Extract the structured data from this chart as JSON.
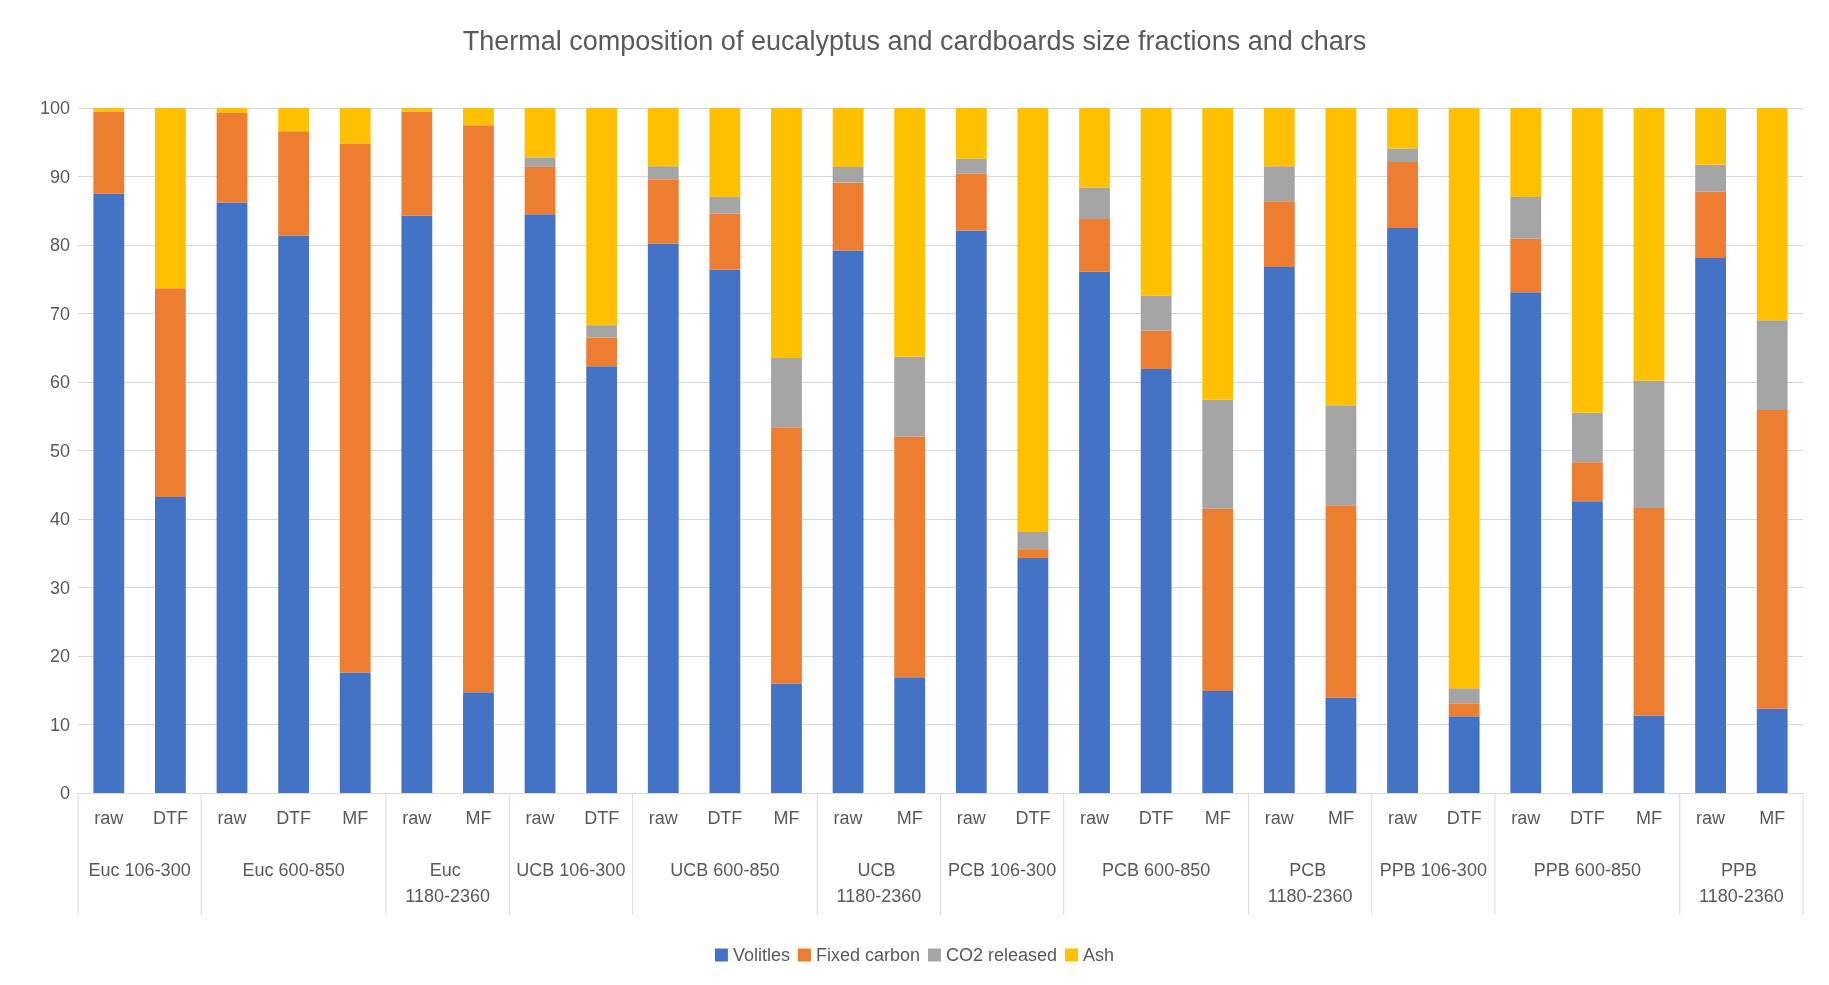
{
  "chart_data": {
    "type": "bar",
    "title": "Thermal composition of eucalyptus and cardboards size fractions and chars",
    "categories": [
      "raw",
      "DTF",
      "raw",
      "DTF",
      "MF",
      "raw",
      "MF",
      "raw",
      "DTF",
      "raw",
      "DTF",
      "MF",
      "raw",
      "MF",
      "raw",
      "DTF",
      "raw",
      "DTF",
      "MF",
      "raw",
      "MF",
      "raw",
      "DTF",
      "raw",
      "DTF",
      "MF",
      "raw",
      "MF"
    ],
    "annotations": [
      "Euc 106-300",
      "Euc 600-850",
      "Euc 1180-2360",
      "UCB 106-300",
      "UCB 600-850",
      "UCB 1180-2360",
      "PCB 106-300",
      "PCB 600-850",
      "PCB 1180-2360",
      "PPB 106-300",
      "PPB 600-850",
      "PPB 1180-2360"
    ],
    "stacked": true,
    "series": [
      {
        "name": "Volitles",
        "color": "#4472c4",
        "values": [
          87.5,
          43.2,
          86.2,
          81.4,
          17.6,
          84.3,
          14.7,
          84.5,
          62.3,
          80.2,
          76.4,
          16.0,
          79.2,
          16.9,
          82.1,
          34.3,
          76.1,
          61.9,
          14.9,
          76.8,
          13.9,
          82.5,
          11.2,
          73.1,
          42.6,
          11.3,
          78.1,
          12.3
        ]
      },
      {
        "name": "Fixed carbon",
        "color": "#ed7d31",
        "values": [
          12.0,
          30.5,
          13.1,
          15.2,
          77.2,
          15.2,
          82.8,
          6.9,
          4.2,
          9.4,
          8.2,
          37.4,
          9.9,
          35.1,
          8.3,
          1.3,
          7.7,
          5.6,
          26.6,
          9.6,
          28.1,
          9.6,
          1.9,
          7.8,
          5.7,
          30.3,
          9.7,
          43.6
        ]
      },
      {
        "name": "CO2 released",
        "color": "#a5a5a5",
        "values": [
          0,
          0,
          0,
          0,
          0,
          0,
          0,
          1.4,
          1.8,
          1.9,
          2.4,
          10.1,
          2.3,
          11.7,
          2.2,
          2.5,
          4.6,
          5.1,
          15.9,
          5.1,
          14.6,
          2.0,
          2.2,
          6.1,
          7.2,
          18.6,
          3.9,
          13.1
        ]
      },
      {
        "name": "Ash",
        "color": "#ffc000",
        "values": [
          0.5,
          26.3,
          0.7,
          3.4,
          5.2,
          0.5,
          2.5,
          7.2,
          31.7,
          8.5,
          13.0,
          36.5,
          8.6,
          36.3,
          7.4,
          61.9,
          11.6,
          27.4,
          42.6,
          8.5,
          43.4,
          5.9,
          84.7,
          13.0,
          44.5,
          39.8,
          8.3,
          31.0
        ]
      }
    ],
    "ylim": [
      0,
      100
    ],
    "yticks": [
      0,
      10,
      20,
      30,
      40,
      50,
      60,
      70,
      80,
      90,
      100
    ],
    "grid": "y",
    "legend": "bottom"
  }
}
